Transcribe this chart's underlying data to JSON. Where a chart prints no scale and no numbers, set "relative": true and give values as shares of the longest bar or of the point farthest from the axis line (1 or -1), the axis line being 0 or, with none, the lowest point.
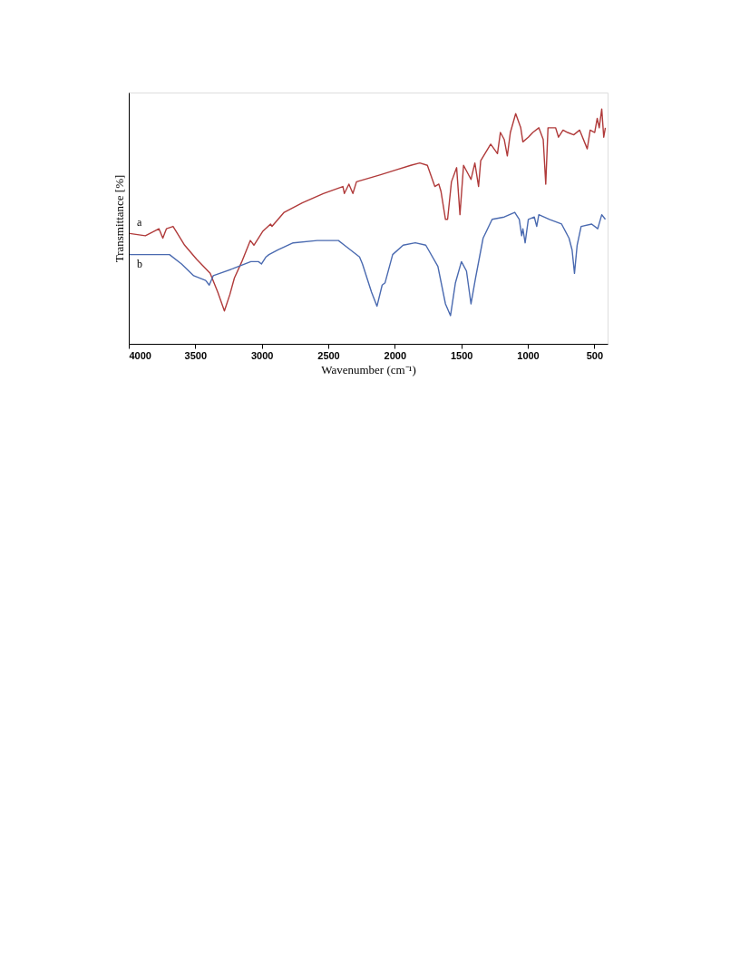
{
  "chart_data": {
    "type": "line",
    "xlabel": "Wavenumber (cm⁻¹)",
    "ylabel": "Transmittance [%]",
    "relative": true,
    "xlim": [
      4000,
      400
    ],
    "xticks": [
      4000,
      3500,
      3000,
      2500,
      2000,
      1500,
      1000,
      500
    ],
    "grid": false,
    "marker": "none",
    "line_style": "solid",
    "series": [
      {
        "name": "a",
        "color": "#b03a3a",
        "x": [
          3993,
          3875,
          3773,
          3744,
          3717,
          3667,
          3580,
          3490,
          3388,
          3331,
          3281,
          3240,
          3206,
          3150,
          3086,
          3059,
          2991,
          2934,
          2923,
          2832,
          2696,
          2537,
          2390,
          2379,
          2345,
          2315,
          2288,
          2107,
          1993,
          1880,
          1812,
          1755,
          1699,
          1669,
          1653,
          1619,
          1603,
          1574,
          1535,
          1510,
          1483,
          1427,
          1398,
          1370,
          1354,
          1279,
          1228,
          1206,
          1177,
          1154,
          1131,
          1091,
          1053,
          1037,
          996,
          962,
          917,
          884,
          865,
          848,
          791,
          769,
          735,
          701,
          655,
          610,
          553,
          531,
          497,
          478,
          463,
          444,
          429,
          417
        ],
        "values": [
          0.47,
          0.46,
          0.49,
          0.45,
          0.49,
          0.5,
          0.42,
          0.36,
          0.3,
          0.22,
          0.14,
          0.21,
          0.28,
          0.35,
          0.44,
          0.42,
          0.48,
          0.51,
          0.5,
          0.56,
          0.6,
          0.64,
          0.67,
          0.64,
          0.68,
          0.64,
          0.69,
          0.72,
          0.74,
          0.76,
          0.77,
          0.76,
          0.67,
          0.68,
          0.65,
          0.53,
          0.53,
          0.69,
          0.75,
          0.55,
          0.76,
          0.7,
          0.77,
          0.67,
          0.78,
          0.85,
          0.81,
          0.9,
          0.87,
          0.8,
          0.9,
          0.98,
          0.92,
          0.86,
          0.88,
          0.9,
          0.92,
          0.87,
          0.68,
          0.92,
          0.92,
          0.88,
          0.91,
          0.9,
          0.89,
          0.91,
          0.83,
          0.91,
          0.9,
          0.96,
          0.92,
          1.0,
          0.88,
          0.92
        ]
      },
      {
        "name": "b",
        "color": "#4a6ab0",
        "x": [
          3993,
          3762,
          3694,
          3603,
          3512,
          3422,
          3395,
          3365,
          3218,
          3082,
          3025,
          3002,
          2968,
          2946,
          2878,
          2764,
          2583,
          2424,
          2379,
          2265,
          2243,
          2175,
          2134,
          2095,
          2073,
          2016,
          1937,
          1846,
          1767,
          1676,
          1619,
          1581,
          1544,
          1499,
          1461,
          1427,
          1393,
          1336,
          1268,
          1177,
          1098,
          1064,
          1046,
          1037,
          1020,
          996,
          951,
          933,
          917,
          837,
          746,
          690,
          667,
          649,
          629,
          599,
          520,
          474,
          444,
          417
        ],
        "values": [
          0.38,
          0.38,
          0.38,
          0.34,
          0.29,
          0.27,
          0.25,
          0.29,
          0.32,
          0.35,
          0.35,
          0.34,
          0.37,
          0.38,
          0.4,
          0.43,
          0.44,
          0.44,
          0.42,
          0.37,
          0.34,
          0.22,
          0.16,
          0.25,
          0.26,
          0.38,
          0.42,
          0.43,
          0.42,
          0.33,
          0.17,
          0.12,
          0.26,
          0.35,
          0.31,
          0.17,
          0.28,
          0.45,
          0.53,
          0.54,
          0.56,
          0.53,
          0.46,
          0.49,
          0.43,
          0.53,
          0.54,
          0.5,
          0.55,
          0.53,
          0.51,
          0.45,
          0.4,
          0.3,
          0.42,
          0.5,
          0.51,
          0.49,
          0.55,
          0.53
        ]
      }
    ]
  }
}
